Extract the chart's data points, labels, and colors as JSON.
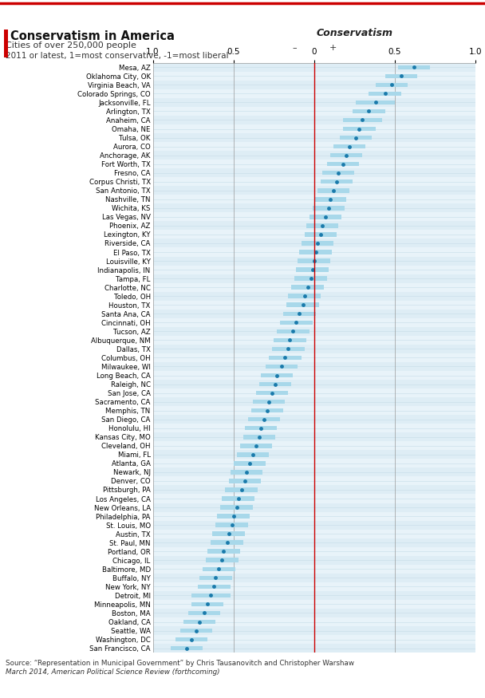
{
  "title": "Conservatism in America",
  "subtitle1": "Cities of over 250,000 people",
  "subtitle2": "2011 or latest, 1=most conservative, -1=most liberal",
  "axis_label": "Conservatism",
  "source": "Source: “Representation in Municipal Government” by Chris Tausanovitch and Christopher Warshaw",
  "source2": "March 2014, American Political Science Review (forthcoming)",
  "cities": [
    "Mesa, AZ",
    "Oklahoma City, OK",
    "Virginia Beach, VA",
    "Colorado Springs, CO",
    "Jacksonville, FL",
    "Arlington, TX",
    "Anaheim, CA",
    "Omaha, NE",
    "Tulsa, OK",
    "Aurora, CO",
    "Anchorage, AK",
    "Fort Worth, TX",
    "Fresno, CA",
    "Corpus Christi, TX",
    "San Antonio, TX",
    "Nashville, TN",
    "Wichita, KS",
    "Las Vegas, NV",
    "Phoenix, AZ",
    "Lexington, KY",
    "Riverside, CA",
    "El Paso, TX",
    "Louisville, KY",
    "Indianapolis, IN",
    "Tampa, FL",
    "Charlotte, NC",
    "Toledo, OH",
    "Houston, TX",
    "Santa Ana, CA",
    "Cincinnati, OH",
    "Tucson, AZ",
    "Albuquerque, NM",
    "Dallas, TX",
    "Columbus, OH",
    "Milwaukee, WI",
    "Long Beach, CA",
    "Raleigh, NC",
    "San Jose, CA",
    "Sacramento, CA",
    "Memphis, TN",
    "San Diego, CA",
    "Honolulu, HI",
    "Kansas City, MO",
    "Cleveland, OH",
    "Miami, FL",
    "Atlanta, GA",
    "Newark, NJ",
    "Denver, CO",
    "Pittsburgh, PA",
    "Los Angeles, CA",
    "New Orleans, LA",
    "Philadelphia, PA",
    "St. Louis, MO",
    "Austin, TX",
    "St. Paul, MN",
    "Portland, OR",
    "Chicago, IL",
    "Baltimore, MD",
    "Buffalo, NY",
    "New York, NY",
    "Detroit, MI",
    "Minneapolis, MN",
    "Boston, MA",
    "Oakland, CA",
    "Seattle, WA",
    "Washington, DC",
    "San Francisco, CA"
  ],
  "values": [
    0.62,
    0.54,
    0.48,
    0.44,
    0.38,
    0.34,
    0.3,
    0.28,
    0.26,
    0.22,
    0.2,
    0.18,
    0.15,
    0.14,
    0.12,
    0.1,
    0.09,
    0.07,
    0.05,
    0.04,
    0.02,
    0.01,
    0.0,
    -0.01,
    -0.02,
    -0.04,
    -0.06,
    -0.07,
    -0.09,
    -0.11,
    -0.13,
    -0.15,
    -0.16,
    -0.18,
    -0.2,
    -0.23,
    -0.24,
    -0.26,
    -0.28,
    -0.29,
    -0.31,
    -0.33,
    -0.34,
    -0.36,
    -0.38,
    -0.4,
    -0.42,
    -0.43,
    -0.45,
    -0.47,
    -0.48,
    -0.5,
    -0.51,
    -0.53,
    -0.54,
    -0.56,
    -0.57,
    -0.59,
    -0.61,
    -0.62,
    -0.64,
    -0.66,
    -0.68,
    -0.71,
    -0.73,
    -0.76,
    -0.79
  ],
  "ci_low": [
    0.52,
    0.44,
    0.38,
    0.34,
    0.26,
    0.24,
    0.18,
    0.18,
    0.16,
    0.12,
    0.1,
    0.08,
    0.05,
    0.04,
    0.02,
    0.0,
    -0.01,
    -0.03,
    -0.05,
    -0.06,
    -0.08,
    -0.09,
    -0.1,
    -0.11,
    -0.12,
    -0.14,
    -0.16,
    -0.17,
    -0.19,
    -0.21,
    -0.23,
    -0.25,
    -0.26,
    -0.28,
    -0.3,
    -0.33,
    -0.34,
    -0.36,
    -0.38,
    -0.39,
    -0.41,
    -0.43,
    -0.44,
    -0.46,
    -0.48,
    -0.5,
    -0.52,
    -0.53,
    -0.55,
    -0.57,
    -0.58,
    -0.6,
    -0.61,
    -0.63,
    -0.64,
    -0.66,
    -0.67,
    -0.69,
    -0.71,
    -0.72,
    -0.76,
    -0.76,
    -0.78,
    -0.81,
    -0.83,
    -0.86,
    -0.89
  ],
  "ci_high": [
    0.72,
    0.64,
    0.58,
    0.54,
    0.5,
    0.44,
    0.42,
    0.38,
    0.36,
    0.32,
    0.3,
    0.28,
    0.25,
    0.24,
    0.22,
    0.2,
    0.19,
    0.17,
    0.15,
    0.14,
    0.12,
    0.11,
    0.1,
    0.09,
    0.08,
    0.06,
    0.04,
    0.03,
    0.01,
    -0.01,
    -0.03,
    -0.05,
    -0.06,
    -0.08,
    -0.1,
    -0.13,
    -0.14,
    -0.16,
    -0.18,
    -0.19,
    -0.21,
    -0.23,
    -0.24,
    -0.26,
    -0.28,
    -0.3,
    -0.32,
    -0.33,
    -0.35,
    -0.37,
    -0.38,
    -0.4,
    -0.41,
    -0.43,
    -0.44,
    -0.46,
    -0.47,
    -0.49,
    -0.51,
    -0.52,
    -0.52,
    -0.56,
    -0.58,
    -0.61,
    -0.63,
    -0.66,
    -0.69
  ],
  "dot_color": "#1a7aab",
  "bar_color": "#a8d8ea",
  "zero_line_color": "#cc0000",
  "grid_color": "#c5dce8",
  "bg_color": "#deedf5",
  "title_bar_color": "#cc0000",
  "white_bg": "#ffffff"
}
